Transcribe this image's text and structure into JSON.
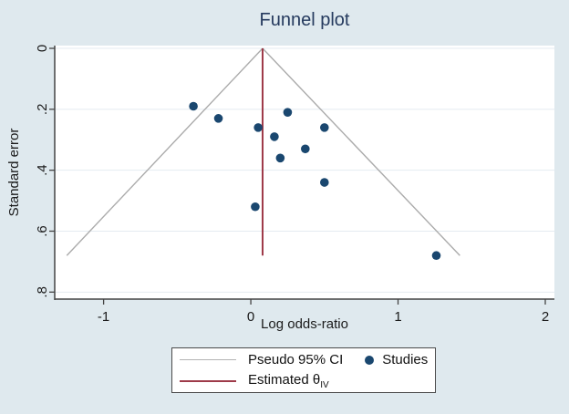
{
  "chart_data": {
    "type": "scatter",
    "title": "Funnel plot",
    "xlabel": "Log odds-ratio",
    "ylabel": "Standard error",
    "y_axis_reversed": true,
    "xlim": [
      -1.33,
      2.06
    ],
    "ylim": [
      0,
      0.8
    ],
    "grid": "horizontal",
    "legend_position": "bottom",
    "xticks": [
      {
        "v": -1,
        "label": "-1"
      },
      {
        "v": 0,
        "label": "0"
      },
      {
        "v": 1,
        "label": "1"
      },
      {
        "v": 2,
        "label": "2"
      }
    ],
    "yticks": [
      {
        "v": 0.0,
        "label": "0"
      },
      {
        "v": 0.2,
        "label": ".2"
      },
      {
        "v": 0.4,
        "label": ".4"
      },
      {
        "v": 0.6,
        "label": ".6"
      },
      {
        "v": 0.8,
        "label": ".8"
      }
    ],
    "series": [
      {
        "name": "Studies",
        "type": "scatter",
        "color": "#1a476f",
        "points": [
          {
            "x": -0.39,
            "se": 0.19
          },
          {
            "x": -0.22,
            "se": 0.23
          },
          {
            "x": 0.05,
            "se": 0.26
          },
          {
            "x": 0.25,
            "se": 0.21
          },
          {
            "x": 0.16,
            "se": 0.29
          },
          {
            "x": 0.5,
            "se": 0.26
          },
          {
            "x": 0.37,
            "se": 0.33
          },
          {
            "x": 0.2,
            "se": 0.36
          },
          {
            "x": 0.5,
            "se": 0.44
          },
          {
            "x": 0.03,
            "se": 0.52
          },
          {
            "x": 1.26,
            "se": 0.68
          }
        ]
      },
      {
        "name": "Pseudo 95% CI",
        "type": "line",
        "color": "#ababab",
        "width": 1.4,
        "segments": [
          [
            [
              0.08,
              0
            ],
            [
              -1.25,
              0.68
            ]
          ],
          [
            [
              0.08,
              0
            ],
            [
              1.42,
              0.68
            ]
          ]
        ]
      },
      {
        "name": "Estimated theta-IV",
        "type": "line",
        "color": "#9e3a49",
        "width": 2,
        "segments": [
          [
            [
              0.08,
              0
            ],
            [
              0.08,
              0.68
            ]
          ]
        ]
      }
    ],
    "estimated_theta_x": 0.08,
    "colors": {
      "figure_bg": "#dfe9ee",
      "plot_bg": "#ffffff",
      "grid": "#e4ebf1",
      "axis": "#444444",
      "title": "#253a5e",
      "marker": "#1a476f",
      "pseudo_ci_line": "#ababab",
      "estimated_line": "#9e3a49"
    },
    "legend": {
      "pseudo_ci": "Pseudo 95% CI",
      "studies": "Studies",
      "estimated_base": "Estimated θ",
      "estimated_sub": "IV"
    }
  }
}
